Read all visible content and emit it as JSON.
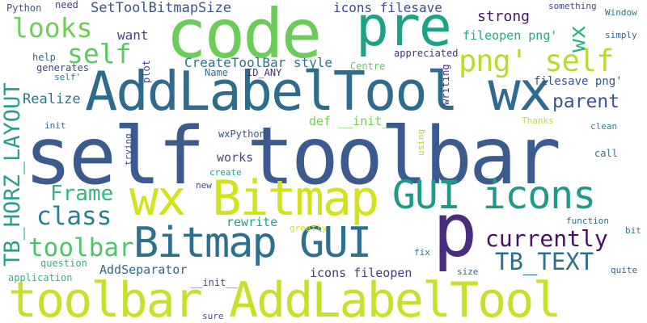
{
  "words": [
    {
      "text": "self toolbar",
      "color": "#3b5a8e"
    },
    {
      "text": "toolbar AddLabelTool",
      "color": "#c9e02a"
    },
    {
      "text": "code",
      "color": "#6ccc5a"
    },
    {
      "text": "pre",
      "color": "#1fa187"
    },
    {
      "text": "AddLabelTool wx",
      "color": "#2f6b8e"
    },
    {
      "text": "wx Bitmap",
      "color": "#d2e21b"
    },
    {
      "text": "GUI icons",
      "color": "#1f9a8a"
    },
    {
      "text": "Bitmap GUI",
      "color": "#2e6f8e"
    },
    {
      "text": "p",
      "color": "#4b2d7f"
    },
    {
      "text": "png' self",
      "color": "#b5de2b"
    },
    {
      "text": "TB_HORZ_LAYOUT",
      "color": "#2a9d8f"
    },
    {
      "text": "looks",
      "color": "#6ece58"
    },
    {
      "text": "self",
      "color": "#5cc863"
    },
    {
      "text": "class",
      "color": "#2a7f8e"
    },
    {
      "text": "Frame",
      "color": "#35b779"
    },
    {
      "text": "toolbar",
      "color": "#4fc46a"
    },
    {
      "text": "currently",
      "color": "#471063"
    },
    {
      "text": "TB_TEXT",
      "color": "#2d708e"
    },
    {
      "text": "parent",
      "color": "#39558c"
    },
    {
      "text": "wx",
      "color": "#2db27d"
    },
    {
      "text": "SetToolBitmapSize",
      "color": "#3b528b"
    },
    {
      "text": "icons filesave",
      "color": "#3e4a89"
    },
    {
      "text": "strong",
      "color": "#48186a"
    },
    {
      "text": "fileopen png'",
      "color": "#22a884"
    },
    {
      "text": "CreateToolBar style",
      "color": "#2c728e"
    },
    {
      "text": "want",
      "color": "#414487"
    },
    {
      "text": "filesave png'",
      "color": "#3a548c"
    },
    {
      "text": "Realize",
      "color": "#2c738e"
    },
    {
      "text": "def __init__",
      "color": "#7ad151"
    },
    {
      "text": "works",
      "color": "#3f4889"
    },
    {
      "text": "rewrite",
      "color": "#20a386"
    },
    {
      "text": "AddSeparator",
      "color": "#31688e"
    },
    {
      "text": "icons fileopen",
      "color": "#443a83"
    },
    {
      "text": "Python",
      "color": "#3b528b"
    },
    {
      "text": "need",
      "color": "#414487"
    },
    {
      "text": "something",
      "color": "#3e4989"
    },
    {
      "text": "Window",
      "color": "#2a788e"
    },
    {
      "text": "simply",
      "color": "#355f8d"
    },
    {
      "text": "help",
      "color": "#31688e"
    },
    {
      "text": "generates",
      "color": "#3e4989"
    },
    {
      "text": "self'",
      "color": "#2a778e"
    },
    {
      "text": "plot",
      "color": "#3e4a89"
    },
    {
      "text": "Name",
      "color": "#2c718e"
    },
    {
      "text": "ID_ANY",
      "color": "#472f7d"
    },
    {
      "text": "Centre",
      "color": "#5ec962"
    },
    {
      "text": "appreciated",
      "color": "#46327e"
    },
    {
      "text": "writing",
      "color": "#46307e"
    },
    {
      "text": "init",
      "color": "#2d708e"
    },
    {
      "text": "wxPython",
      "color": "#3b528b"
    },
    {
      "text": "using",
      "color": "#addc30"
    },
    {
      "text": "Thanks",
      "color": "#bddf26"
    },
    {
      "text": "clean",
      "color": "#26828e"
    },
    {
      "text": "trying",
      "color": "#3f4788"
    },
    {
      "text": "call",
      "color": "#2c728e"
    },
    {
      "text": "create",
      "color": "#20a386"
    },
    {
      "text": "new",
      "color": "#404588"
    },
    {
      "text": "bit",
      "color": "#2a788e"
    },
    {
      "text": "function",
      "color": "#2f6c8e"
    },
    {
      "text": "greatly",
      "color": "#d8e219"
    },
    {
      "text": "question",
      "color": "#2db27d"
    },
    {
      "text": "application",
      "color": "#35b779"
    },
    {
      "text": "fix",
      "color": "#2a788e"
    },
    {
      "text": "size",
      "color": "#31688e"
    },
    {
      "text": "quite",
      "color": "#355f8d"
    },
    {
      "text": "__init__",
      "color": "#3e4a89"
    },
    {
      "text": "sure",
      "color": "#3b528b"
    }
  ]
}
